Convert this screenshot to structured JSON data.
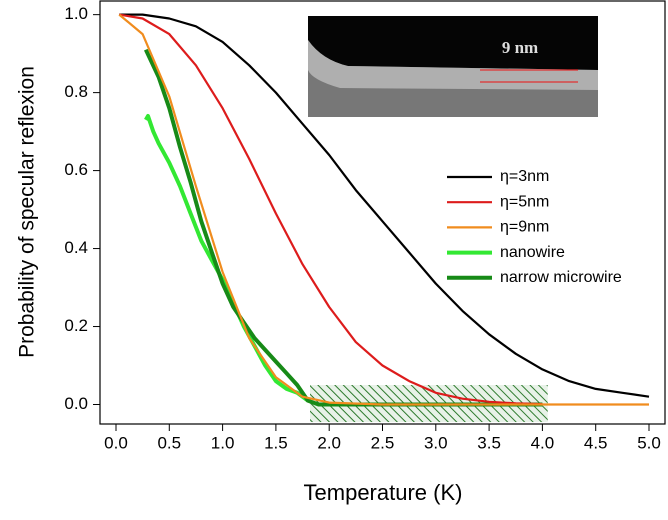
{
  "chart_data": {
    "type": "line",
    "xlabel": "Temperature (K)",
    "ylabel": "Probability of specular reflexion",
    "xlim": [
      -0.15,
      5.15
    ],
    "ylim": [
      -0.05,
      1.035
    ],
    "xticks": [
      {
        "value": 0,
        "label": "0.0"
      },
      0.5,
      {
        "value": 1,
        "label": "1.0"
      },
      1.5,
      {
        "value": 2,
        "label": "2.0"
      },
      2.5,
      {
        "value": 3,
        "label": "3.0"
      },
      3.5,
      {
        "value": 4,
        "label": "4.0"
      },
      4.5,
      {
        "value": 5,
        "label": "5.0"
      }
    ],
    "yticks": [
      {
        "value": 0,
        "label": "0.0"
      },
      0.2,
      0.4,
      0.6,
      0.8,
      {
        "value": 1,
        "label": "1.0"
      }
    ],
    "legend": "right",
    "series": [
      {
        "name": "η=3nm",
        "color": "#000000",
        "x": [
          0.03,
          0.25,
          0.5,
          0.75,
          1.0,
          1.25,
          1.5,
          1.75,
          2.0,
          2.25,
          2.5,
          2.75,
          3.0,
          3.25,
          3.5,
          3.75,
          4.0,
          4.25,
          4.5,
          4.75,
          5.0
        ],
        "values": [
          1.0,
          1.0,
          0.99,
          0.97,
          0.93,
          0.87,
          0.8,
          0.72,
          0.64,
          0.55,
          0.47,
          0.39,
          0.31,
          0.24,
          0.18,
          0.13,
          0.09,
          0.06,
          0.04,
          0.03,
          0.02
        ]
      },
      {
        "name": "η=5nm",
        "color": "#dd1c1c",
        "x": [
          0.03,
          0.25,
          0.5,
          0.75,
          1.0,
          1.25,
          1.5,
          1.75,
          2.0,
          2.25,
          2.5,
          2.75,
          3.0,
          3.25,
          3.5,
          3.75,
          4.0
        ],
        "values": [
          1.0,
          0.99,
          0.95,
          0.87,
          0.76,
          0.63,
          0.49,
          0.36,
          0.25,
          0.16,
          0.1,
          0.06,
          0.03,
          0.015,
          0.007,
          0.003,
          0.001
        ]
      },
      {
        "name": "η=9nm",
        "color": "#f08c1e",
        "x": [
          0.03,
          0.25,
          0.5,
          0.75,
          1.0,
          1.25,
          1.5,
          1.75,
          2.0,
          2.5,
          3.0,
          3.5,
          4.0,
          4.5,
          5.0
        ],
        "values": [
          1.0,
          0.95,
          0.79,
          0.56,
          0.34,
          0.17,
          0.07,
          0.02,
          0.005,
          0,
          0,
          0,
          0,
          0,
          0
        ]
      },
      {
        "name": "nanowire",
        "color": "#33e833",
        "x": [
          0.28,
          0.3,
          0.35,
          0.4,
          0.5,
          0.6,
          0.7,
          0.8,
          0.9,
          1.0,
          1.1,
          1.2,
          1.3,
          1.4,
          1.5,
          1.6,
          1.7,
          1.8
        ],
        "values": [
          0.73,
          0.74,
          0.7,
          0.67,
          0.62,
          0.56,
          0.49,
          0.42,
          0.37,
          0.32,
          0.26,
          0.2,
          0.15,
          0.1,
          0.06,
          0.04,
          0.03,
          0.01
        ]
      },
      {
        "name": "narrow microwire",
        "color": "#178a17",
        "x": [
          0.28,
          0.4,
          0.5,
          0.6,
          0.7,
          0.8,
          0.9,
          1.0,
          1.1,
          1.2,
          1.3,
          1.4,
          1.5,
          1.6,
          1.7,
          1.8,
          1.9,
          2.5,
          3.0,
          3.5,
          4.0
        ],
        "values": [
          0.91,
          0.84,
          0.76,
          0.66,
          0.57,
          0.47,
          0.39,
          0.31,
          0.25,
          0.21,
          0.17,
          0.14,
          0.11,
          0.08,
          0.05,
          0.01,
          0,
          0,
          0,
          0,
          0
        ]
      }
    ],
    "shaded_region": {
      "x": [
        1.82,
        4.05
      ],
      "y": [
        -0.045,
        0.05
      ]
    },
    "inset_label": "9 nm"
  }
}
